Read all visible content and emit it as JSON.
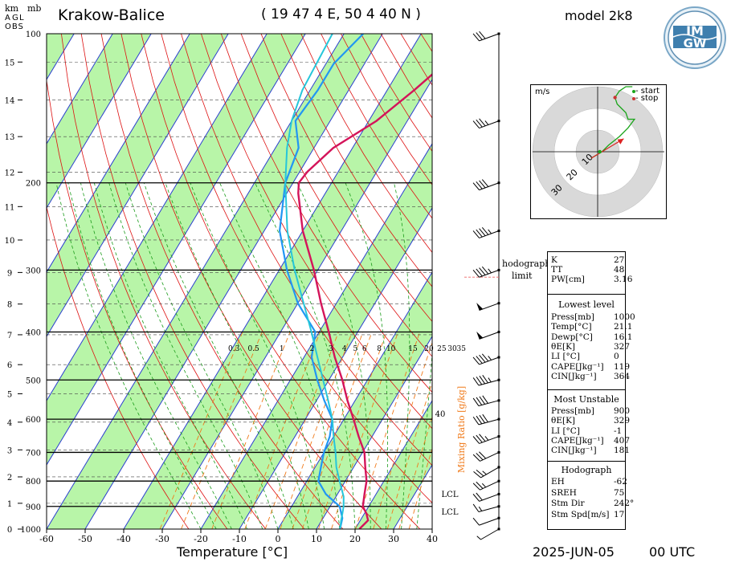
{
  "header": {
    "station": "Krakow-Balice",
    "coords": "( 19 47 4 E, 50 4 40 N )",
    "model": "model 2k8",
    "left_units_km": "km",
    "left_units_mb": "mb",
    "agl_label": [
      "A",
      "G",
      "L"
    ],
    "obs_label": "OBS"
  },
  "logo": {
    "text": "IMGW",
    "icon": "imgw-logo-icon"
  },
  "footer": {
    "xlabel": "Temperature [°C]",
    "datetime": "2025-JUN-05",
    "utc": "00 UTC"
  },
  "hodograph": {
    "units": "m/s",
    "legend_start": "- start",
    "legend_stop": "- stop",
    "ring_labels": [
      "10",
      "20",
      "30"
    ],
    "limit_label_1": "hodograph",
    "limit_label_2": "limit",
    "path_uv": [
      [
        -3,
        -3
      ],
      [
        2,
        0
      ],
      [
        5,
        3
      ],
      [
        10,
        7
      ],
      [
        14,
        11
      ],
      [
        17,
        15
      ],
      [
        14,
        15
      ],
      [
        13,
        18
      ],
      [
        9,
        22
      ],
      [
        8,
        25
      ],
      [
        10,
        28
      ],
      [
        13,
        30
      ],
      [
        16,
        30
      ]
    ],
    "start_point": [
      -3,
      -3
    ],
    "stop_point": [
      8,
      25
    ],
    "mean_arrow_to": [
      12,
      6
    ]
  },
  "indices": {
    "top": [
      {
        "k": "K",
        "v": "27"
      },
      {
        "k": "TT",
        "v": "48"
      },
      {
        "k": "PW[cm]",
        "v": "3.16"
      }
    ],
    "lowest_title": "Lowest level",
    "lowest": [
      {
        "k": "Press[mb]",
        "v": "1000"
      },
      {
        "k": "Temp[°C]",
        "v": "21.1"
      },
      {
        "k": "Dewp[°C]",
        "v": "16.1"
      },
      {
        "k": "θE[K]",
        "v": "327"
      },
      {
        "k": "LI [°C]",
        "v": "0"
      },
      {
        "k": "CAPE[Jkg⁻¹]",
        "v": "119"
      },
      {
        "k": "CIN[Jkg⁻¹]",
        "v": "364"
      }
    ],
    "unstable_title": "Most Unstable",
    "unstable": [
      {
        "k": "Press[mb]",
        "v": "900"
      },
      {
        "k": "θE[K]",
        "v": "329"
      },
      {
        "k": "LI [°C]",
        "v": "-1"
      },
      {
        "k": "CAPE[Jkg⁻¹]",
        "v": "407"
      },
      {
        "k": "CIN[Jkg⁻¹]",
        "v": "181"
      }
    ],
    "hodo_title": "Hodograph",
    "hodo": [
      {
        "k": "EH",
        "v": "-62"
      },
      {
        "k": "SREH",
        "v": "75"
      },
      {
        "k": "Stm Dir",
        "v": "242°"
      },
      {
        "k": "Stm Spd[m/s]",
        "v": "17"
      }
    ]
  },
  "chart_data": {
    "type": "line",
    "title": "Krakow-Balice",
    "xlabel": "Temperature [°C]",
    "ylabel": "mb",
    "xlim": [
      -60,
      40
    ],
    "x_ticks": [
      -60,
      -50,
      -40,
      -30,
      -20,
      -10,
      0,
      10,
      20,
      30,
      40
    ],
    "y_pressure_ticks": [
      100,
      200,
      300,
      400,
      500,
      600,
      700,
      800,
      900,
      1000
    ],
    "y_km_ticks": [
      0,
      1,
      2,
      3,
      4,
      5,
      6,
      7,
      8,
      9,
      10,
      11,
      12,
      13,
      14,
      15,
      16
    ],
    "mixing_ratio_label": "Mixing Ratio [g/kg]",
    "mixing_ratio_ticks": [
      "0.3",
      "0.5",
      "1",
      "2",
      "3",
      "4",
      "5",
      "6",
      "8",
      "10",
      "15",
      "20",
      "25",
      "30",
      "35"
    ],
    "right_axis_value": "40",
    "lcl_labels": [
      "LCL",
      "LCL"
    ],
    "colors": {
      "temperature": "#d4145a",
      "dewpoint_outer": "#2196f3",
      "dewpoint_inner": "#26c6da",
      "band": "#b8f5a8",
      "isotherm": "#2a3ecf",
      "dry_adiabat": "#d11",
      "moist_adiabat": "#1a9b1a",
      "mixing": "#f07a1a"
    },
    "series": [
      {
        "name": "temperature",
        "points": [
          [
            1000,
            21.1
          ],
          [
            960,
            22
          ],
          [
            930,
            20.5
          ],
          [
            900,
            18.5
          ],
          [
            850,
            17
          ],
          [
            800,
            15.5
          ],
          [
            750,
            13
          ],
          [
            700,
            10.5
          ],
          [
            650,
            6.5
          ],
          [
            600,
            2.5
          ],
          [
            550,
            -2
          ],
          [
            500,
            -6.5
          ],
          [
            450,
            -12
          ],
          [
            400,
            -17.5
          ],
          [
            350,
            -24
          ],
          [
            300,
            -31
          ],
          [
            250,
            -40
          ],
          [
            210,
            -47
          ],
          [
            200,
            -48.5
          ],
          [
            190,
            -48
          ],
          [
            170,
            -45
          ],
          [
            150,
            -38
          ],
          [
            130,
            -33
          ],
          [
            100,
            -25
          ]
        ]
      },
      {
        "name": "dewpoint",
        "points": [
          [
            1000,
            16.1
          ],
          [
            950,
            15
          ],
          [
            920,
            13.5
          ],
          [
            900,
            12.5
          ],
          [
            850,
            7
          ],
          [
            800,
            3
          ],
          [
            750,
            1.5
          ],
          [
            700,
            0
          ],
          [
            650,
            -1
          ],
          [
            600,
            -3
          ],
          [
            550,
            -8
          ],
          [
            500,
            -13
          ],
          [
            450,
            -18
          ],
          [
            400,
            -21
          ],
          [
            350,
            -30
          ],
          [
            300,
            -38
          ],
          [
            250,
            -46
          ],
          [
            200,
            -52
          ],
          [
            170,
            -54
          ],
          [
            150,
            -59
          ],
          [
            130,
            -58
          ],
          [
            115,
            -58
          ],
          [
            100,
            -55
          ]
        ]
      },
      {
        "name": "parcel",
        "points": [
          [
            1000,
            16.1
          ],
          [
            960,
            15
          ],
          [
            930,
            14.3
          ],
          [
            900,
            13.5
          ],
          [
            860,
            12
          ],
          [
            800,
            8.5
          ],
          [
            750,
            5.5
          ],
          [
            700,
            3
          ],
          [
            650,
            0
          ],
          [
            600,
            -3
          ],
          [
            550,
            -7
          ],
          [
            500,
            -11.5
          ],
          [
            450,
            -16.5
          ],
          [
            400,
            -22
          ],
          [
            350,
            -28.5
          ],
          [
            300,
            -36
          ],
          [
            250,
            -44
          ],
          [
            200,
            -52
          ],
          [
            170,
            -57
          ],
          [
            150,
            -60
          ],
          [
            130,
            -62
          ],
          [
            100,
            -63
          ]
        ]
      }
    ],
    "wind_barbs": [
      {
        "p": 1000,
        "dir": 240,
        "spd_kt": 5
      },
      {
        "p": 950,
        "dir": 250,
        "spd_kt": 10
      },
      {
        "p": 900,
        "dir": 255,
        "spd_kt": 15
      },
      {
        "p": 850,
        "dir": 250,
        "spd_kt": 20
      },
      {
        "p": 800,
        "dir": 245,
        "spd_kt": 25
      },
      {
        "p": 750,
        "dir": 240,
        "spd_kt": 25
      },
      {
        "p": 700,
        "dir": 245,
        "spd_kt": 30
      },
      {
        "p": 650,
        "dir": 250,
        "spd_kt": 35
      },
      {
        "p": 600,
        "dir": 255,
        "spd_kt": 40
      },
      {
        "p": 550,
        "dir": 255,
        "spd_kt": 40
      },
      {
        "p": 500,
        "dir": 255,
        "spd_kt": 45
      },
      {
        "p": 450,
        "dir": 250,
        "spd_kt": 45
      },
      {
        "p": 400,
        "dir": 250,
        "spd_kt": 50
      },
      {
        "p": 350,
        "dir": 250,
        "spd_kt": 50
      },
      {
        "p": 300,
        "dir": 250,
        "spd_kt": 45
      },
      {
        "p": 250,
        "dir": 250,
        "spd_kt": 45
      },
      {
        "p": 200,
        "dir": 250,
        "spd_kt": 40
      },
      {
        "p": 150,
        "dir": 250,
        "spd_kt": 35
      },
      {
        "p": 100,
        "dir": 250,
        "spd_kt": 30
      }
    ]
  }
}
